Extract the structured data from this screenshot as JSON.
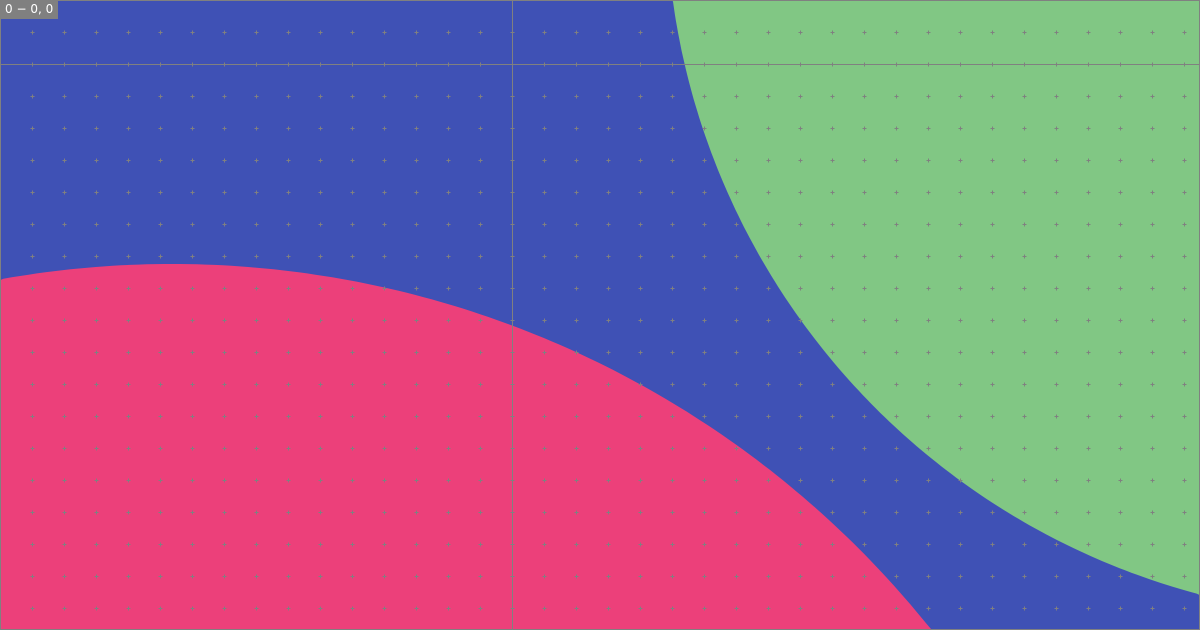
{
  "canvas": {
    "coordinate_readout": "0 − 0, 0",
    "background_color": "#3f51b5",
    "shapes": [
      {
        "type": "circle",
        "color": "#ec407a"
      },
      {
        "type": "circle",
        "color": "#81c784"
      }
    ],
    "grid_color": "#808080"
  }
}
